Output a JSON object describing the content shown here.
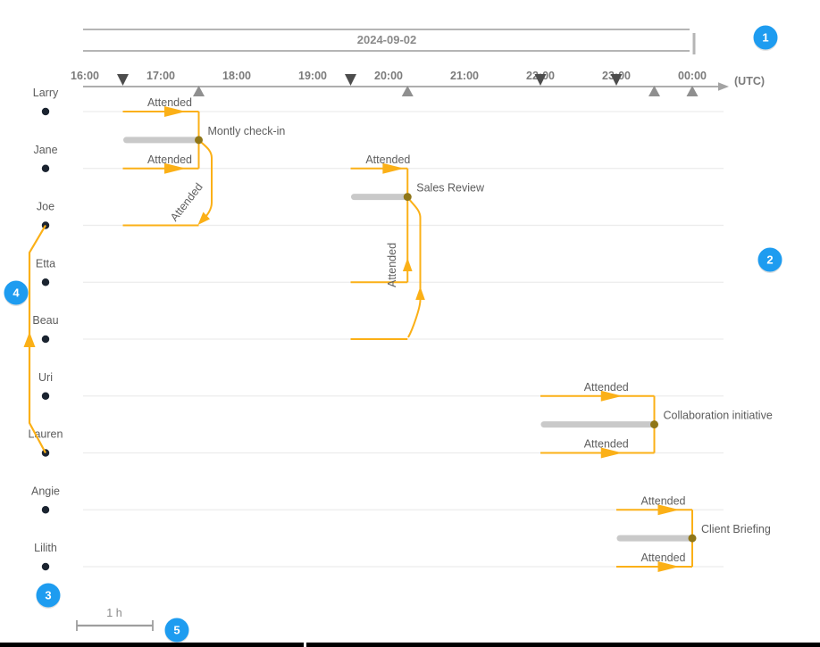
{
  "chart_data": {
    "type": "timeline",
    "date_band": "2024-09-02",
    "timezone_label": "(UTC)",
    "time_ticks": [
      "16:00",
      "17:00",
      "18:00",
      "19:00",
      "20:00",
      "21:00",
      "22:00",
      "23:00",
      "00:00"
    ],
    "people": [
      "Larry",
      "Jane",
      "Joe",
      "Etta",
      "Beau",
      "Uri",
      "Lauren",
      "Angie",
      "Lilith"
    ],
    "events": [
      {
        "name": "Montly check-in",
        "start": "16:30",
        "end": "17:30",
        "attendees": [
          "Larry",
          "Jane",
          "Joe"
        ],
        "edge_label": "Attended"
      },
      {
        "name": "Sales Review",
        "start": "19:30",
        "end": "20:15",
        "attendees": [
          "Jane",
          "Etta",
          "Beau"
        ],
        "edge_label": "Attended"
      },
      {
        "name": "Collaboration initiative",
        "start": "22:00",
        "end": "23:30",
        "attendees": [
          "Uri",
          "Lauren"
        ],
        "edge_label": "Attended"
      },
      {
        "name": "Client Briefing",
        "start": "23:00",
        "end": "00:00",
        "attendees": [
          "Angie",
          "Lilith"
        ],
        "edge_label": "Attended"
      }
    ],
    "person_link": {
      "from": "Lauren",
      "to": "Joe"
    },
    "scale_label": "1 h",
    "annotations": [
      {
        "label": "1"
      },
      {
        "label": "2"
      },
      {
        "label": "3"
      },
      {
        "label": "4"
      },
      {
        "label": "5"
      }
    ],
    "colors": {
      "edge": "#FBB017",
      "event_bar": "#c9c9c9",
      "event_dot": "#8F7618",
      "person_dot": "#1B2430",
      "annotation_badge": "#1E9CF0",
      "axis": "#A3A3A3",
      "date_band_line": "#B5B5B5",
      "gridline": "#ECECEC",
      "start_marker": "#4D4D4D",
      "end_marker": "#8F8F8F",
      "bottom_bar": "#000000"
    }
  }
}
